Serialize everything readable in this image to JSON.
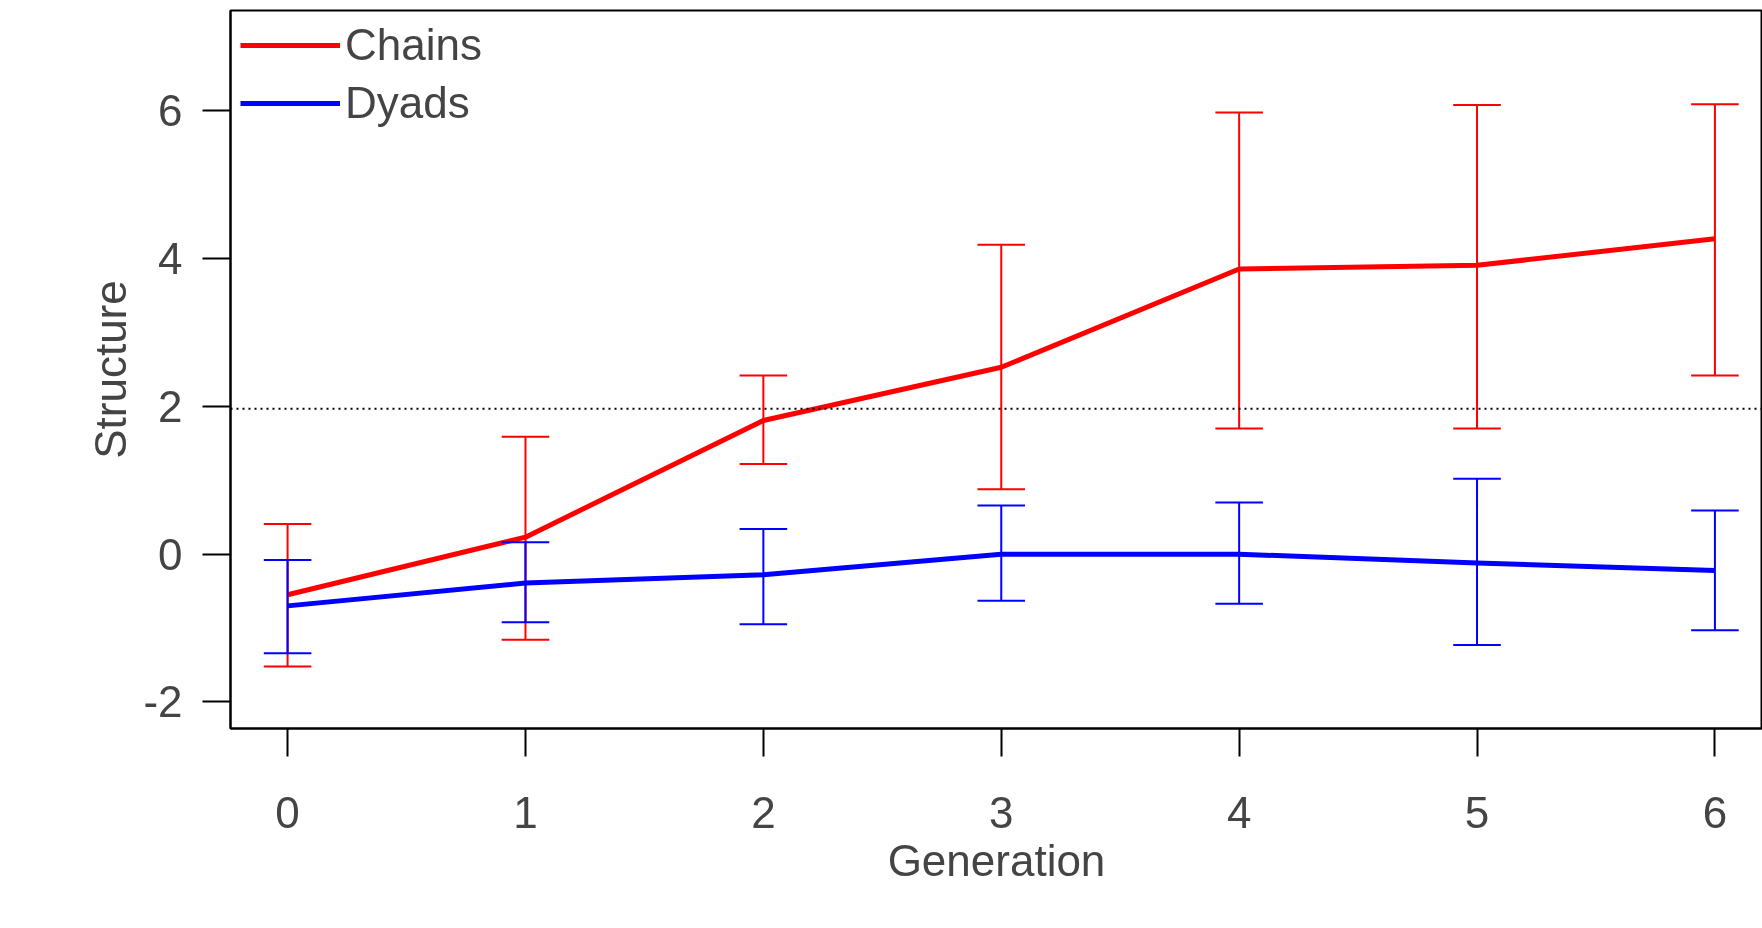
{
  "chart_data": {
    "type": "line",
    "xlabel": "Generation",
    "ylabel": "Structure",
    "x": [
      0,
      1,
      2,
      3,
      4,
      5,
      6
    ],
    "series": [
      {
        "name": "Chains",
        "color": "#ff0000",
        "values": [
          -0.55,
          0.23,
          1.81,
          2.53,
          3.86,
          3.91,
          4.27
        ],
        "errors": [
          [
            -1.52,
            0.41
          ],
          [
            -1.16,
            1.59
          ],
          [
            1.22,
            2.42
          ],
          [
            0.88,
            4.19
          ],
          [
            1.7,
            5.98
          ],
          [
            1.7,
            6.08
          ],
          [
            2.42,
            6.09
          ]
        ]
      },
      {
        "name": "Dyads",
        "color": "#0000ff",
        "values": [
          -0.7,
          -0.39,
          -0.28,
          0,
          0,
          -0.12,
          -0.22
        ],
        "errors": [
          [
            -1.34,
            -0.08
          ],
          [
            -0.92,
            0.16
          ],
          [
            -0.95,
            0.34
          ],
          [
            -0.63,
            0.66
          ],
          [
            -0.67,
            0.7
          ],
          [
            -1.23,
            1.02
          ],
          [
            -1.03,
            0.59
          ]
        ]
      }
    ],
    "xlim": [
      -0.24,
      6.2
    ],
    "ylim": [
      -2.36,
      7.36
    ],
    "xticks": [
      0,
      1,
      2,
      3,
      4,
      5,
      6
    ],
    "yticks": [
      -2,
      0,
      2,
      4,
      6
    ],
    "ref_lines": [
      {
        "axis": "y",
        "value": 1.97,
        "color": "#000000",
        "line_style": "dotted"
      }
    ],
    "grid": false,
    "legend": "top left",
    "marker": "none",
    "line_style": "solid"
  }
}
